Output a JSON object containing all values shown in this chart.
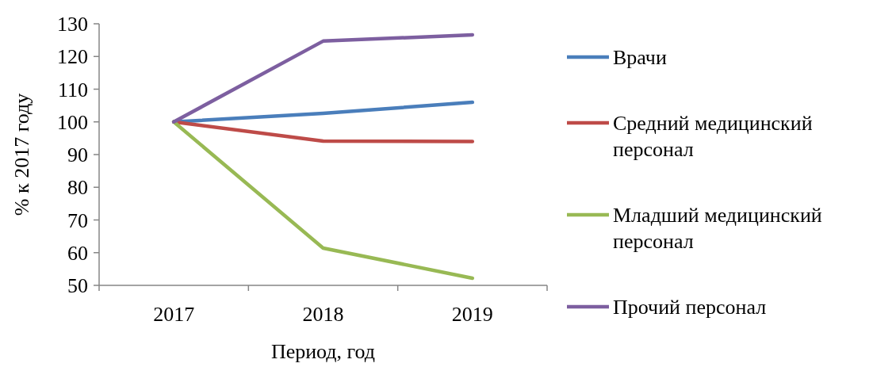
{
  "chart_data": {
    "type": "line",
    "xlabel": "Период, год",
    "ylabel": "% к 2017 году",
    "categories": [
      "2017",
      "2018",
      "2019"
    ],
    "ylim": [
      50,
      130
    ],
    "yticks": [
      50,
      60,
      70,
      80,
      90,
      100,
      110,
      120,
      130
    ],
    "grid": false,
    "legend": "right",
    "marker": "none",
    "line_style": "solid",
    "series": [
      {
        "name": "Врачи",
        "color": "#4a7ebb",
        "values": [
          100,
          102.6,
          106
        ]
      },
      {
        "name": "Средний медицинский персонал",
        "color": "#be4b48",
        "values": [
          100,
          94.1,
          94
        ]
      },
      {
        "name": "Младший медицинский персонал",
        "color": "#98b954",
        "values": [
          100,
          61.4,
          52.2
        ]
      },
      {
        "name": "Прочий персонал",
        "color": "#7d5fa0",
        "values": [
          100,
          124.7,
          126.6
        ]
      }
    ]
  }
}
